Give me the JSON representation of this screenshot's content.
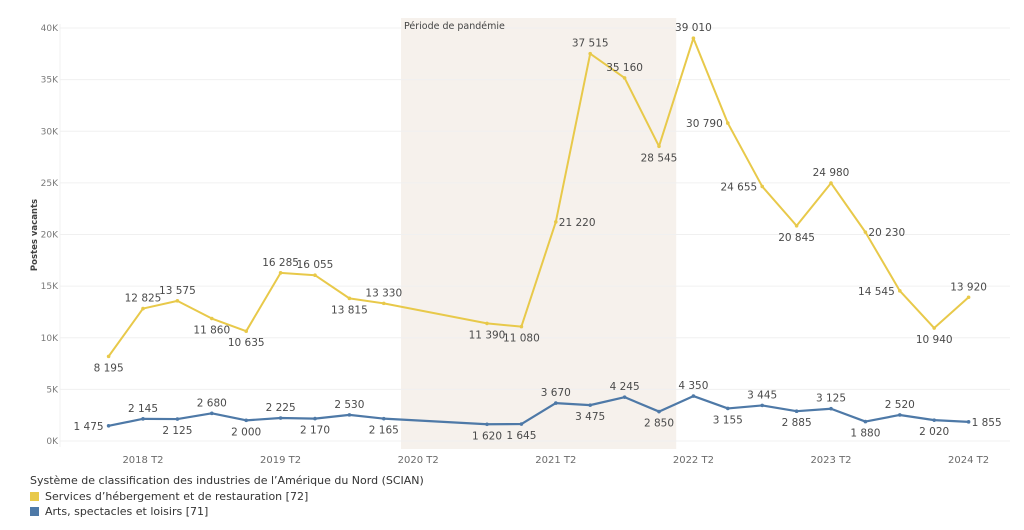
{
  "chart_data": {
    "type": "line",
    "title": "",
    "xlabel": "",
    "ylabel": "Postes vacants",
    "ylim": [
      0,
      40000
    ],
    "y_ticks": [
      "0K",
      "5K",
      "10K",
      "15K",
      "20K",
      "25K",
      "30K",
      "35K",
      "40K"
    ],
    "y_tick_values": [
      0,
      5000,
      10000,
      15000,
      20000,
      25000,
      30000,
      35000,
      40000
    ],
    "grid": true,
    "x_tick_labels": [
      "2018 T2",
      "2019 T2",
      "2020 T2",
      "2021 T2",
      "2022 T2",
      "2023 T2",
      "2024 T2"
    ],
    "x_tick_quarter_index": [
      1,
      5,
      9,
      13,
      17,
      21,
      25
    ],
    "x": [
      "2018 T1",
      "2018 T2",
      "2018 T3",
      "2018 T4",
      "2019 T1",
      "2019 T2",
      "2019 T3",
      "2019 T4",
      "2020 T1",
      "2020 T4",
      "2021 T1",
      "2021 T2",
      "2021 T3",
      "2021 T4",
      "2022 T1",
      "2022 T2",
      "2022 T3",
      "2022 T4",
      "2023 T1",
      "2023 T2",
      "2023 T3",
      "2023 T4",
      "2024 T1",
      "2024 T2"
    ],
    "x_quarter_index": [
      0,
      1,
      2,
      3,
      4,
      5,
      6,
      7,
      8,
      11,
      12,
      13,
      14,
      15,
      16,
      17,
      18,
      19,
      20,
      21,
      22,
      23,
      24,
      25
    ],
    "series": [
      {
        "name": "Services d’hébergement et de restauration [72]",
        "color": "#E8C94A",
        "values": [
          8195,
          12825,
          13575,
          11860,
          10635,
          16285,
          16055,
          13815,
          13330,
          11390,
          11080,
          21220,
          37515,
          35160,
          28545,
          39010,
          30790,
          24655,
          20845,
          24980,
          20230,
          14545,
          10940,
          13920
        ],
        "value_labels": [
          "8 195",
          "12 825",
          "13 575",
          "11 860",
          "10 635",
          "16 285",
          "16 055",
          "13 815",
          "13 330",
          "11 390",
          "11 080",
          "21 220",
          "37 515",
          "35 160",
          "28 545",
          "39 010",
          "30 790",
          "24 655",
          "20 845",
          "24 980",
          "20 230",
          "14 545",
          "10 940",
          "13 920"
        ],
        "label_pos": [
          "below",
          "above",
          "above",
          "below",
          "below",
          "above",
          "above",
          "below",
          "above",
          "below",
          "below",
          "right",
          "above",
          "above",
          "below",
          "above",
          "left",
          "left",
          "below",
          "above",
          "right",
          "left",
          "below",
          "above"
        ]
      },
      {
        "name": "Arts, spectacles et loisirs [71]",
        "color": "#4E79A7",
        "values": [
          1475,
          2145,
          2125,
          2680,
          2000,
          2225,
          2170,
          2530,
          2165,
          1620,
          1645,
          3670,
          3475,
          4245,
          2850,
          4350,
          3155,
          3445,
          2885,
          3125,
          1880,
          2520,
          2020,
          1855
        ],
        "value_labels": [
          "1 475",
          "2 145",
          "2 125",
          "2 680",
          "2 000",
          "2 225",
          "2 170",
          "2 530",
          "2 165",
          "1 620",
          "1 645",
          "3 670",
          "3 475",
          "4 245",
          "2 850",
          "4 350",
          "3 155",
          "3 445",
          "2 885",
          "3 125",
          "1 880",
          "2 520",
          "2 020",
          "1 855"
        ],
        "label_pos": [
          "left",
          "above",
          "below",
          "above",
          "below",
          "above",
          "below",
          "above",
          "below",
          "below",
          "below",
          "above",
          "below",
          "above",
          "below",
          "above",
          "below",
          "above",
          "below",
          "above",
          "below",
          "above",
          "below",
          "right"
        ]
      }
    ],
    "annotations": [
      {
        "text": "Période de pandémie",
        "type": "shaded-band",
        "from_quarter_index": 8.5,
        "to_quarter_index": 16.5,
        "color": "#F6F1EC"
      }
    ],
    "legend": {
      "title": "Système de classification des industries de l’Amérique du Nord (SCIAN)",
      "placement": "bottom-left"
    }
  }
}
